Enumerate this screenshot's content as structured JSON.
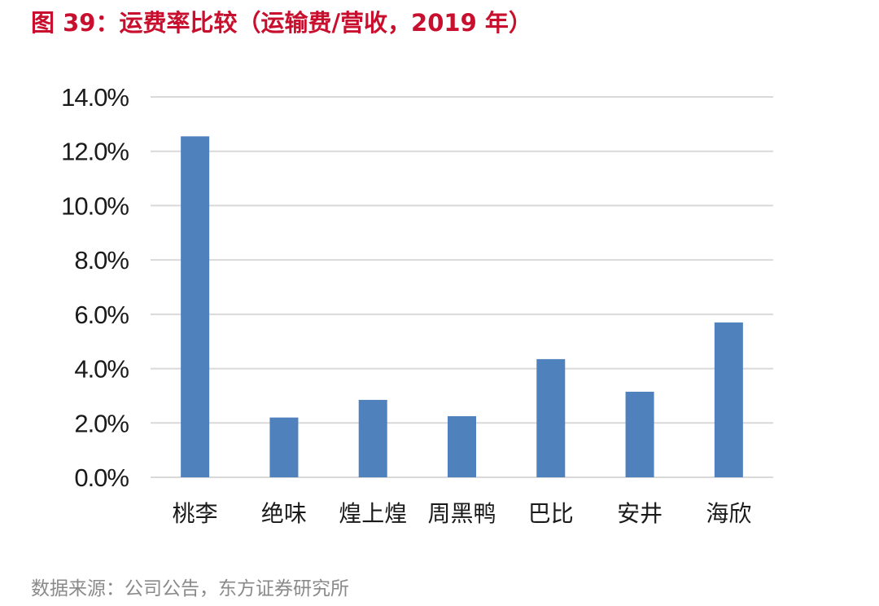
{
  "figure": {
    "title": "图 39：运费率比较（运输费/营收，2019 年）",
    "source": "数据来源：公司公告，东方证券研究所"
  },
  "colors": {
    "title": "#c8102e",
    "bar": "#4f81bd",
    "grid": "#d9d9d9",
    "source": "#8a8a8a"
  },
  "chart_data": {
    "type": "bar",
    "title": "",
    "xlabel": "",
    "ylabel": "",
    "categories": [
      "桃李",
      "绝味",
      "煌上煌",
      "周黑鸭",
      "巴比",
      "安井",
      "海欣"
    ],
    "values": [
      12.55,
      2.2,
      2.85,
      2.25,
      4.35,
      3.15,
      5.7
    ],
    "unit": "%",
    "ylim": [
      0,
      14
    ],
    "yticks": [
      0,
      2,
      4,
      6,
      8,
      10,
      12,
      14
    ],
    "ytick_labels": [
      "0.0%",
      "2.0%",
      "4.0%",
      "6.0%",
      "8.0%",
      "10.0%",
      "12.0%",
      "14.0%"
    ],
    "grid": true,
    "legend": "none"
  }
}
